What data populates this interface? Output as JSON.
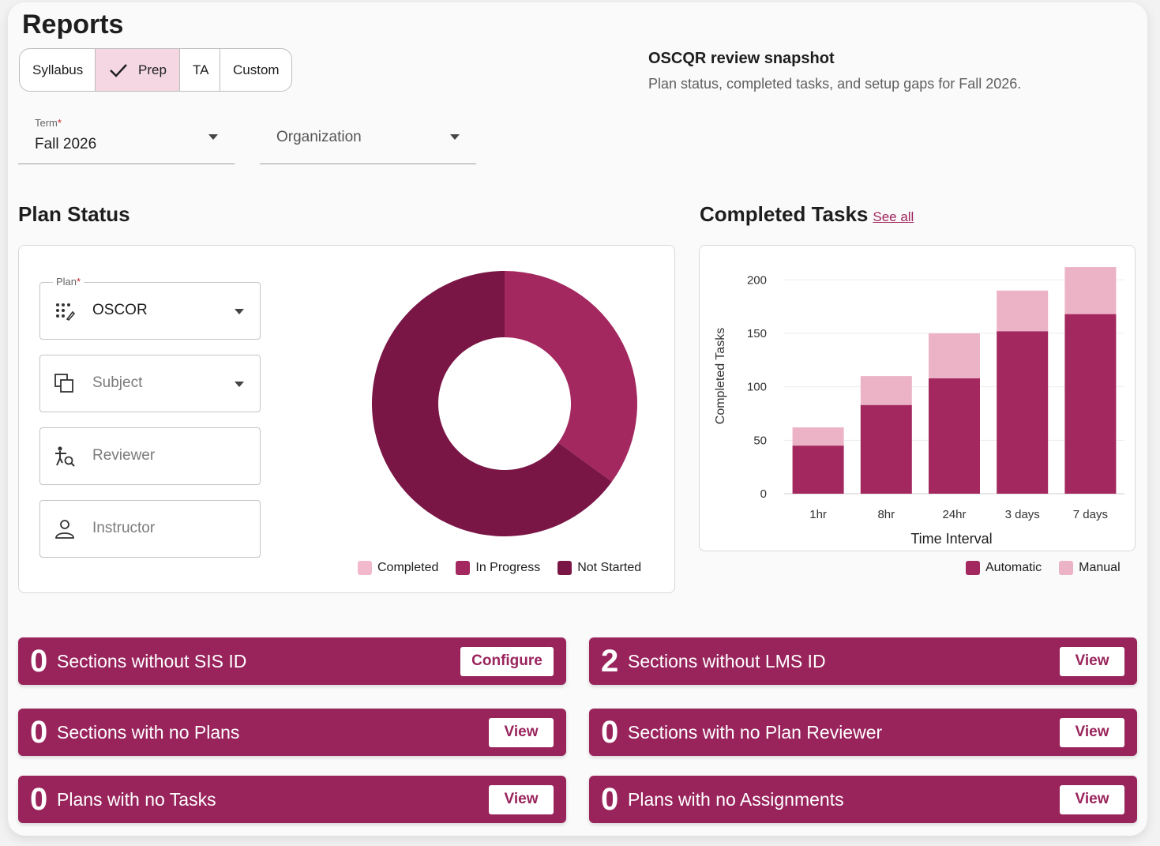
{
  "header": {
    "title": "Reports",
    "tabs": [
      {
        "label": "Syllabus",
        "active": false
      },
      {
        "label": "Prep",
        "active": true
      },
      {
        "label": "TA",
        "active": false
      },
      {
        "label": "Custom",
        "active": false
      }
    ],
    "snapshot_title": "OSCQR review snapshot",
    "snapshot_subtitle": "Plan status, completed tasks, and setup gaps for Fall 2026."
  },
  "filters": {
    "term": {
      "label": "Term",
      "required": "*",
      "value": "Fall 2026"
    },
    "organization": {
      "placeholder": "Organization"
    }
  },
  "plan_status": {
    "heading": "Plan Status",
    "plan": {
      "label": "Plan",
      "required": "*",
      "value": "OSCOR",
      "icon": "plan-dots-icon"
    },
    "subject": {
      "placeholder": "Subject",
      "icon": "copy-icon"
    },
    "reviewer": {
      "placeholder": "Reviewer",
      "icon": "reviewer-search-icon"
    },
    "instructor": {
      "placeholder": "Instructor",
      "icon": "person-icon"
    },
    "legend": [
      {
        "label": "Completed",
        "color": "#f2b8cc"
      },
      {
        "label": "In Progress",
        "color": "#a3285f"
      },
      {
        "label": "Not Started",
        "color": "#7a1646"
      }
    ]
  },
  "completed_tasks": {
    "heading": "Completed Tasks",
    "see_all": "See all",
    "legend": [
      {
        "label": "Automatic",
        "color": "#a3285f"
      },
      {
        "label": "Manual",
        "color": "#ecb3c6"
      }
    ]
  },
  "chart_data": [
    {
      "type": "pie",
      "labels": [
        "Completed",
        "In Progress",
        "Not Started"
      ],
      "values": [
        0,
        35,
        65
      ],
      "colors": [
        "#f2b8cc",
        "#a3285f",
        "#7a1646"
      ],
      "legend_position": "bottom"
    },
    {
      "type": "bar",
      "stacked": true,
      "categories": [
        "1hr",
        "8hr",
        "24hr",
        "3 days",
        "7 days"
      ],
      "series": [
        {
          "name": "Automatic",
          "values": [
            45,
            83,
            108,
            152,
            168
          ],
          "color": "#a3285f"
        },
        {
          "name": "Manual",
          "values": [
            17,
            27,
            42,
            38,
            44
          ],
          "color": "#ecb3c6"
        }
      ],
      "xlabel": "Time Interval",
      "ylabel": "Completed Tasks",
      "yticks": [
        0,
        50,
        100,
        150,
        200
      ],
      "ylim": [
        0,
        215
      ],
      "grid": true,
      "legend_position": "bottom-right"
    }
  ],
  "setup_gaps": [
    {
      "count": "0",
      "text": "Sections without SIS ID",
      "action": "Configure"
    },
    {
      "count": "2",
      "text": "Sections without LMS ID",
      "action": "View"
    },
    {
      "count": "0",
      "text": "Sections with no Plans",
      "action": "View"
    },
    {
      "count": "0",
      "text": "Sections with no Plan Reviewer",
      "action": "View"
    },
    {
      "count": "0",
      "text": "Plans with no Tasks",
      "action": "View"
    },
    {
      "count": "0",
      "text": "Plans with no Assignments",
      "action": "View"
    }
  ]
}
